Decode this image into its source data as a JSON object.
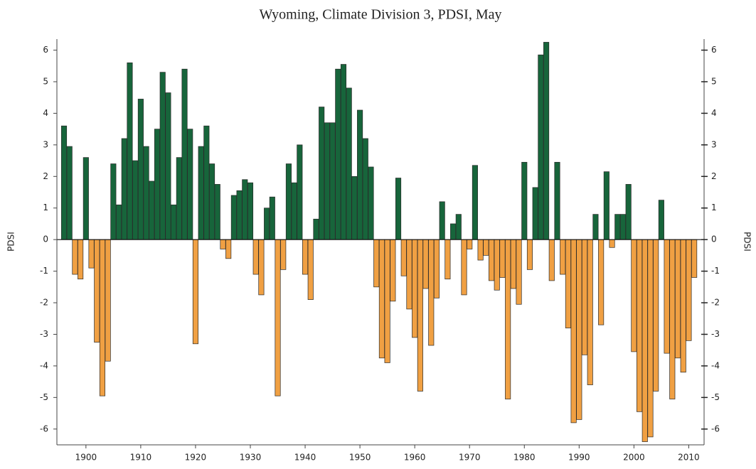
{
  "chart_data": {
    "type": "bar",
    "title": "Wyoming, Climate Division 3, PDSI, May",
    "y_label": "PDSI",
    "y2_label": "PDSI",
    "x": [
      1896,
      1897,
      1898,
      1899,
      1900,
      1901,
      1902,
      1903,
      1904,
      1905,
      1906,
      1907,
      1908,
      1909,
      1910,
      1911,
      1912,
      1913,
      1914,
      1915,
      1916,
      1917,
      1918,
      1919,
      1920,
      1921,
      1922,
      1923,
      1924,
      1925,
      1926,
      1927,
      1928,
      1929,
      1930,
      1931,
      1932,
      1933,
      1934,
      1935,
      1936,
      1937,
      1938,
      1939,
      1940,
      1941,
      1942,
      1943,
      1944,
      1945,
      1946,
      1947,
      1948,
      1949,
      1950,
      1951,
      1952,
      1953,
      1954,
      1955,
      1956,
      1957,
      1958,
      1959,
      1960,
      1961,
      1962,
      1963,
      1964,
      1965,
      1966,
      1967,
      1968,
      1969,
      1970,
      1971,
      1972,
      1973,
      1974,
      1975,
      1976,
      1977,
      1978,
      1979,
      1980,
      1981,
      1982,
      1983,
      1984,
      1985,
      1986,
      1987,
      1988,
      1989,
      1990,
      1991,
      1992,
      1993,
      1994,
      1995,
      1996,
      1997,
      1998,
      1999,
      2000,
      2001,
      2002,
      2003,
      2004,
      2005,
      2006,
      2007,
      2008,
      2009,
      2010,
      2011
    ],
    "values": [
      3.6,
      2.95,
      -1.1,
      -1.25,
      2.6,
      -0.9,
      -3.25,
      -4.95,
      -3.85,
      2.4,
      1.1,
      3.2,
      5.6,
      2.5,
      4.45,
      2.95,
      1.85,
      3.5,
      5.3,
      4.65,
      1.1,
      2.6,
      5.4,
      3.5,
      -3.3,
      2.95,
      3.6,
      2.4,
      1.75,
      -0.3,
      -0.6,
      1.4,
      1.55,
      1.9,
      1.8,
      -1.1,
      -1.75,
      1.0,
      1.35,
      -4.95,
      -0.95,
      2.4,
      1.8,
      3.0,
      -1.1,
      -1.9,
      0.65,
      4.2,
      3.7,
      3.7,
      5.4,
      5.55,
      4.8,
      2.0,
      4.1,
      3.2,
      2.3,
      -1.5,
      -3.75,
      -3.9,
      -1.95,
      1.95,
      -1.15,
      -2.2,
      -3.1,
      -4.8,
      -1.55,
      -3.35,
      -1.85,
      1.2,
      -1.25,
      0.5,
      0.8,
      -1.75,
      -0.3,
      2.35,
      -0.65,
      -0.5,
      -1.3,
      -1.6,
      -1.2,
      -5.05,
      -1.55,
      -2.05,
      2.45,
      -0.95,
      1.65,
      5.85,
      6.25,
      -1.3,
      2.45,
      -1.1,
      -2.8,
      -5.8,
      -5.7,
      -3.65,
      -4.6,
      0.8,
      -2.7,
      2.15,
      -0.25,
      0.8,
      0.8,
      1.75,
      -3.55,
      -5.45,
      -6.4,
      -6.25,
      -4.8,
      1.25,
      -3.6,
      -5.05,
      -3.75,
      -4.2,
      -3.2,
      -1.2
    ],
    "positive_color": "#17653b",
    "negative_color": "#f0a043",
    "xlim": [
      1894.7,
      2012.8
    ],
    "xticks": [
      1900,
      1910,
      1920,
      1930,
      1940,
      1950,
      1960,
      1970,
      1980,
      1990,
      2000,
      2010
    ],
    "ylim": [
      -6.5,
      6.35
    ],
    "yticks": [
      -6,
      -5,
      -4,
      -3,
      -2,
      -1,
      0,
      1,
      2,
      3,
      4,
      5,
      6
    ],
    "y2lim": [
      -6.5,
      6.35
    ],
    "y2ticks": [
      -6,
      -5,
      -4,
      -3,
      -2,
      -1,
      0,
      1,
      2,
      3,
      4,
      5,
      6
    ]
  }
}
